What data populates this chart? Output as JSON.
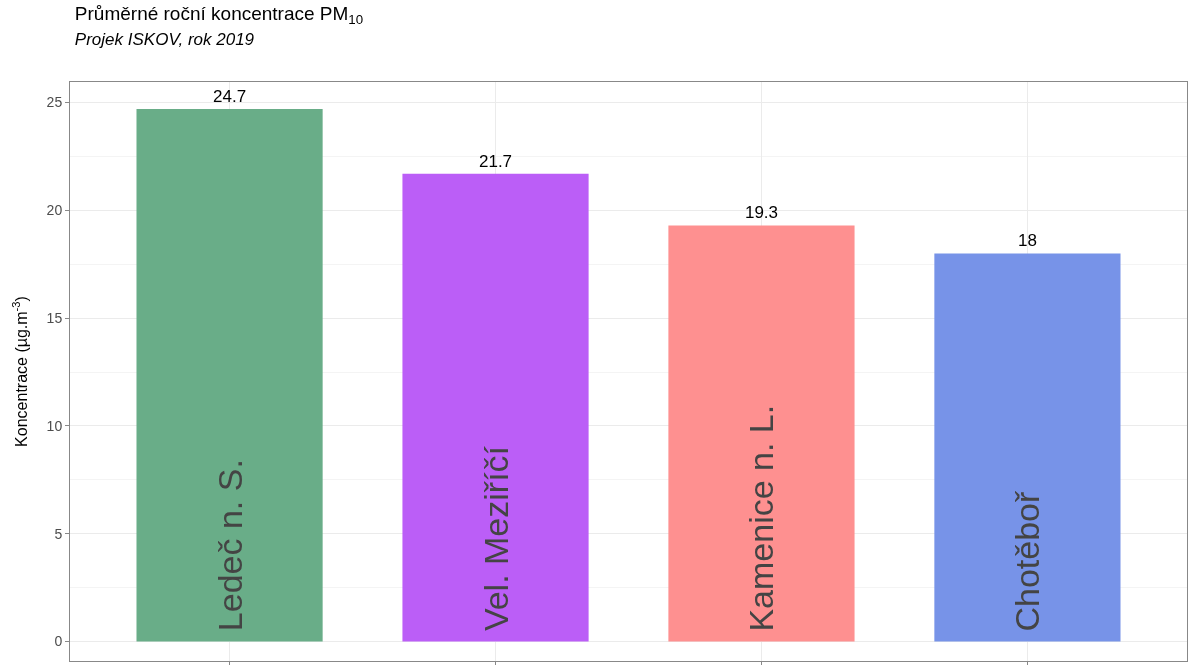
{
  "chart_data": {
    "type": "bar",
    "title": "Průměrné roční koncentrace PM$_{10}$",
    "subtitle": "Projek ISKOV, rok 2019",
    "ylabel": "Koncentrace (µg.m$^{-3}$)",
    "categories": [
      "Ledeč n. S.",
      "Vel. Meziříčí",
      "Kamenice n. L.",
      "Chotěboř"
    ],
    "values": [
      24.7,
      21.7,
      19.3,
      18
    ],
    "colors": [
      "#69ad88",
      "#bb5ef7",
      "#fe9090",
      "#7793e8"
    ],
    "ylim": [
      -0.9,
      25.95
    ],
    "yticks": [
      0,
      5,
      10,
      15,
      20,
      25
    ],
    "grid": true,
    "data_labels": true,
    "tick_labels": "y",
    "legend": false
  }
}
